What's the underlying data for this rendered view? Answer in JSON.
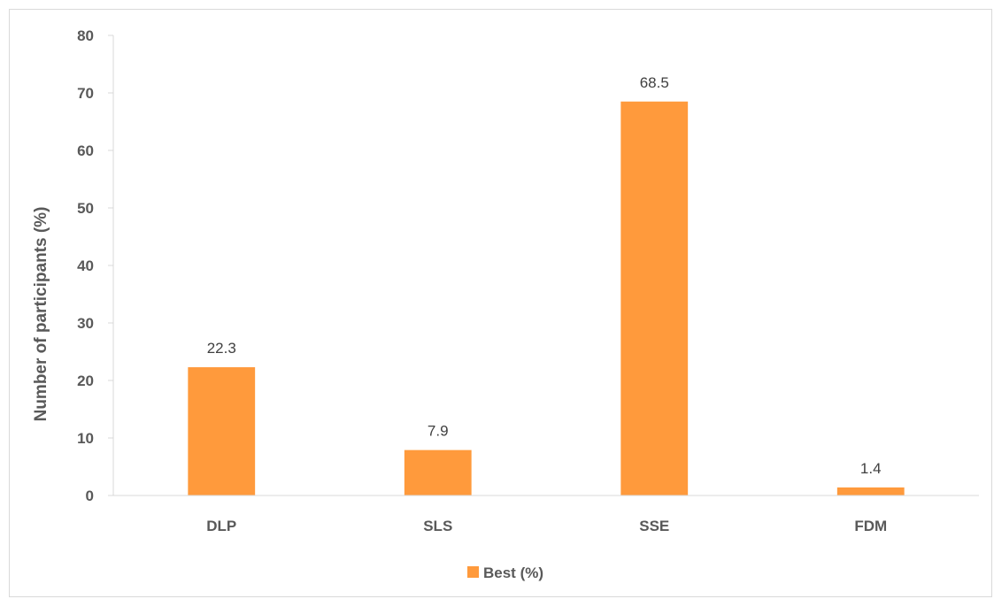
{
  "chart_data": {
    "type": "bar",
    "title": "",
    "xlabel": "",
    "ylabel": "Number of participants (%)",
    "categories": [
      "DLP",
      "SLS",
      "SSE",
      "FDM"
    ],
    "series": [
      {
        "name": "Best (%)",
        "values": [
          22.3,
          7.9,
          68.5,
          1.4
        ],
        "color": "#FF9A3C"
      }
    ],
    "data_labels": [
      "22.3",
      "7.9",
      "68.5",
      "1.4"
    ],
    "ylim": [
      0,
      80
    ],
    "yticks": [
      0,
      10,
      20,
      30,
      40,
      50,
      60,
      70,
      80
    ],
    "grid": false,
    "legend": {
      "position": "bottom"
    }
  },
  "colors": {
    "bar": "#FF9A3C",
    "axis": "#d9d9d9",
    "text": "#595959"
  }
}
